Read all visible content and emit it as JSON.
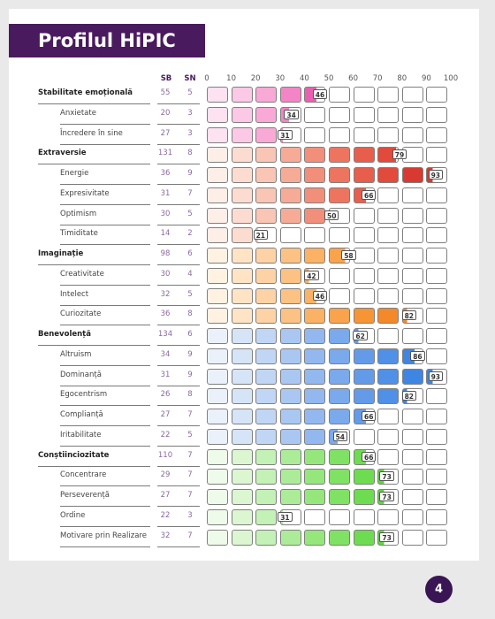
{
  "title": "Profilul HiPIC",
  "headers": {
    "sb": "SB",
    "sn": "SN"
  },
  "scale_ticks": [
    "0",
    "10",
    "20",
    "30",
    "40",
    "50",
    "60",
    "70",
    "80",
    "90",
    "100"
  ],
  "page_number": "4",
  "colors": {
    "Stabilitate emoțională": [
      "#fde2f1",
      "#fbc8e5",
      "#f8a9d6",
      "#f385c6",
      "#ea5fb0"
    ],
    "Extraversie": [
      "#fdeee8",
      "#fcdcd0",
      "#f9c5b4",
      "#f6ab97",
      "#f28f7a",
      "#ed7560",
      "#e85e4c",
      "#e24a3c",
      "#d83a31"
    ],
    "Imaginație": [
      "#fff2e2",
      "#fee4c5",
      "#fdd3a5",
      "#fcc283",
      "#fbb264",
      "#f9a34c",
      "#f79535",
      "#f4892a"
    ],
    "Benevolență": [
      "#eaf1fb",
      "#d6e4f8",
      "#c1d6f5",
      "#aac7f2",
      "#92b8ef",
      "#7aa9ec",
      "#649be9",
      "#5090e6",
      "#3f86e2"
    ],
    "Conștiinciozitate": [
      "#effbea",
      "#dbf6d1",
      "#c4f1b5",
      "#acec98",
      "#95e77c",
      "#80e264",
      "#6edc50",
      "#5fd53f"
    ]
  },
  "rows": [
    {
      "type": "main",
      "label": "Stabilitate emoțională",
      "sb": "55",
      "sn": "5",
      "score": 46,
      "domain": "Stabilitate emoțională"
    },
    {
      "type": "sub",
      "label": "Anxietate",
      "sb": "20",
      "sn": "3",
      "score": 34,
      "domain": "Stabilitate emoțională"
    },
    {
      "type": "sub",
      "label": "Încredere în sine",
      "sb": "27",
      "sn": "3",
      "score": 31,
      "domain": "Stabilitate emoțională"
    },
    {
      "type": "main",
      "label": "Extraversie",
      "sb": "131",
      "sn": "8",
      "score": 79,
      "domain": "Extraversie"
    },
    {
      "type": "sub",
      "label": "Energie",
      "sb": "36",
      "sn": "9",
      "score": 93,
      "domain": "Extraversie"
    },
    {
      "type": "sub",
      "label": "Expresivitate",
      "sb": "31",
      "sn": "7",
      "score": 66,
      "domain": "Extraversie"
    },
    {
      "type": "sub",
      "label": "Optimism",
      "sb": "30",
      "sn": "5",
      "score": 50,
      "domain": "Extraversie"
    },
    {
      "type": "sub",
      "label": "Timiditate",
      "sb": "14",
      "sn": "2",
      "score": 21,
      "domain": "Extraversie"
    },
    {
      "type": "main",
      "label": "Imaginație",
      "sb": "98",
      "sn": "6",
      "score": 58,
      "domain": "Imaginație"
    },
    {
      "type": "sub",
      "label": "Creativitate",
      "sb": "30",
      "sn": "4",
      "score": 42,
      "domain": "Imaginație"
    },
    {
      "type": "sub",
      "label": "Intelect",
      "sb": "32",
      "sn": "5",
      "score": 46,
      "domain": "Imaginație"
    },
    {
      "type": "sub",
      "label": "Curiozitate",
      "sb": "36",
      "sn": "8",
      "score": 82,
      "domain": "Imaginație"
    },
    {
      "type": "main",
      "label": "Benevolență",
      "sb": "134",
      "sn": "6",
      "score": 62,
      "domain": "Benevolență"
    },
    {
      "type": "sub",
      "label": "Altruism",
      "sb": "34",
      "sn": "9",
      "score": 86,
      "domain": "Benevolență"
    },
    {
      "type": "sub",
      "label": "Dominanță",
      "sb": "31",
      "sn": "9",
      "score": 93,
      "domain": "Benevolență"
    },
    {
      "type": "sub",
      "label": "Egocentrism",
      "sb": "26",
      "sn": "8",
      "score": 82,
      "domain": "Benevolență"
    },
    {
      "type": "sub",
      "label": "Complianță",
      "sb": "27",
      "sn": "7",
      "score": 66,
      "domain": "Benevolență"
    },
    {
      "type": "sub",
      "label": "Iritabilitate",
      "sb": "22",
      "sn": "5",
      "score": 54,
      "domain": "Benevolență"
    },
    {
      "type": "main",
      "label": "Conștiinciozitate",
      "sb": "110",
      "sn": "7",
      "score": 66,
      "domain": "Conștiinciozitate"
    },
    {
      "type": "sub",
      "label": "Concentrare",
      "sb": "29",
      "sn": "7",
      "score": 73,
      "domain": "Conștiinciozitate"
    },
    {
      "type": "sub",
      "label": "Perseverență",
      "sb": "27",
      "sn": "7",
      "score": 73,
      "domain": "Conștiinciozitate"
    },
    {
      "type": "sub",
      "label": "Ordine",
      "sb": "22",
      "sn": "3",
      "score": 31,
      "domain": "Conștiinciozitate"
    },
    {
      "type": "sub",
      "label": "Motivare prin Realizare",
      "sb": "32",
      "sn": "7",
      "score": 73,
      "domain": "Conștiinciozitate"
    }
  ]
}
